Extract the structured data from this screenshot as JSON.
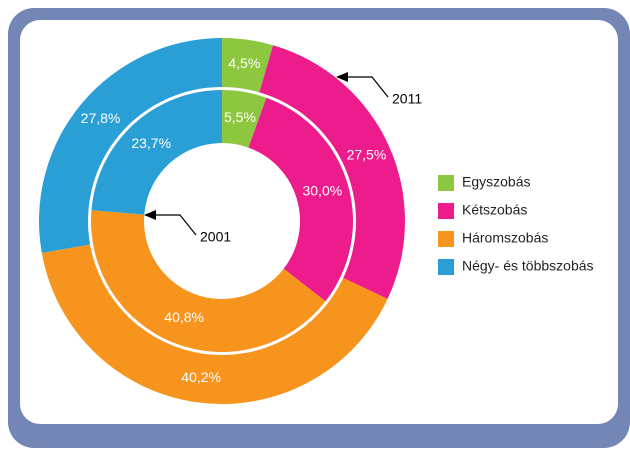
{
  "chart_data": {
    "type": "donut",
    "categories": [
      "Egyszobás",
      "Kétszobás",
      "Háromszobás",
      "Négy- és többszobás"
    ],
    "colors": [
      "#8dc63f",
      "#ec1c8c",
      "#f7941d",
      "#2a9fd6"
    ],
    "series": [
      {
        "name": "2011",
        "values": [
          4.5,
          27.5,
          40.2,
          27.8
        ],
        "value_labels": [
          "4,5%",
          "27,5%",
          "40,2%",
          "27,8%"
        ]
      },
      {
        "name": "2001",
        "values": [
          5.5,
          30.0,
          40.8,
          23.7
        ],
        "value_labels": [
          "5,5%",
          "30,0%",
          "40,8%",
          "23,7%"
        ]
      }
    ]
  }
}
